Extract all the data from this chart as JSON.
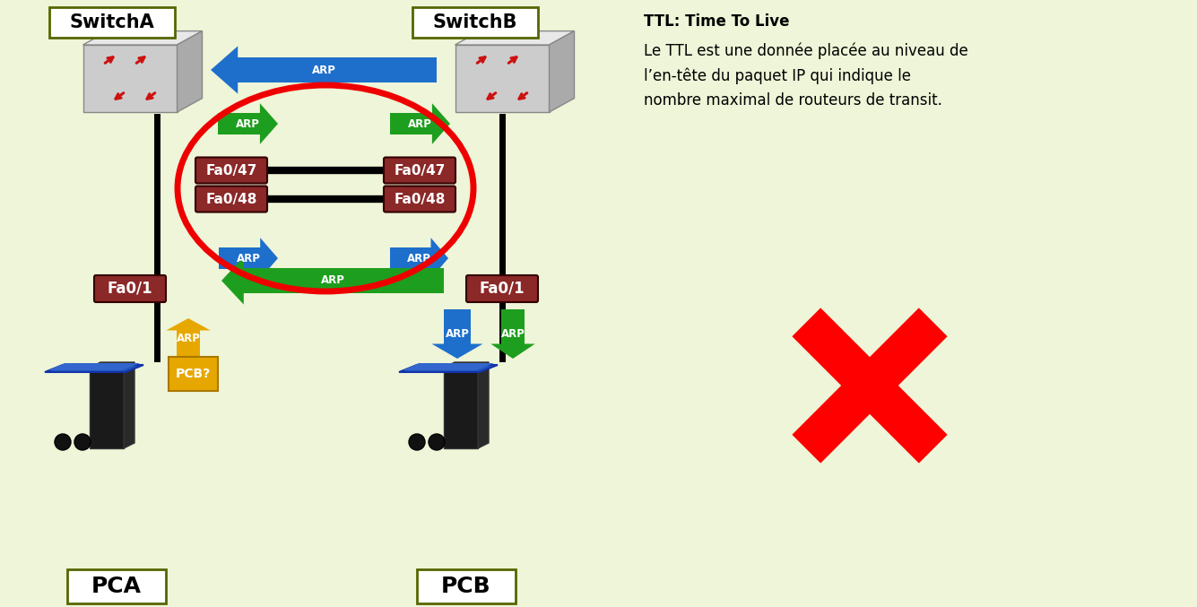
{
  "bg_color": "#eef5d8",
  "switch_a_label": "SwitchA",
  "switch_b_label": "SwitchB",
  "pca_label": "PCA",
  "pcb_label": "PCB",
  "fa01_left": "Fa0/1",
  "fa01_right": "Fa0/1",
  "fa047_left": "Fa0/47",
  "fa047_right": "Fa0/47",
  "fa048_left": "Fa0/48",
  "fa048_right": "Fa0/48",
  "pcb_query": "PCB?",
  "arp_blue": "#1e6fcc",
  "arp_green": "#1e9e1e",
  "arp_gold": "#e6a800",
  "port_bg": "#8b2828",
  "red_ellipse": "#ee0000",
  "ttl_line1": "TTL: Time To Live",
  "ttl_line2": "Le TTL est une donnée placée au niveau de",
  "ttl_line3": "l’en-tête du paquet IP qui indique le",
  "ttl_line4": "nombre maximal de routeurs de transit."
}
